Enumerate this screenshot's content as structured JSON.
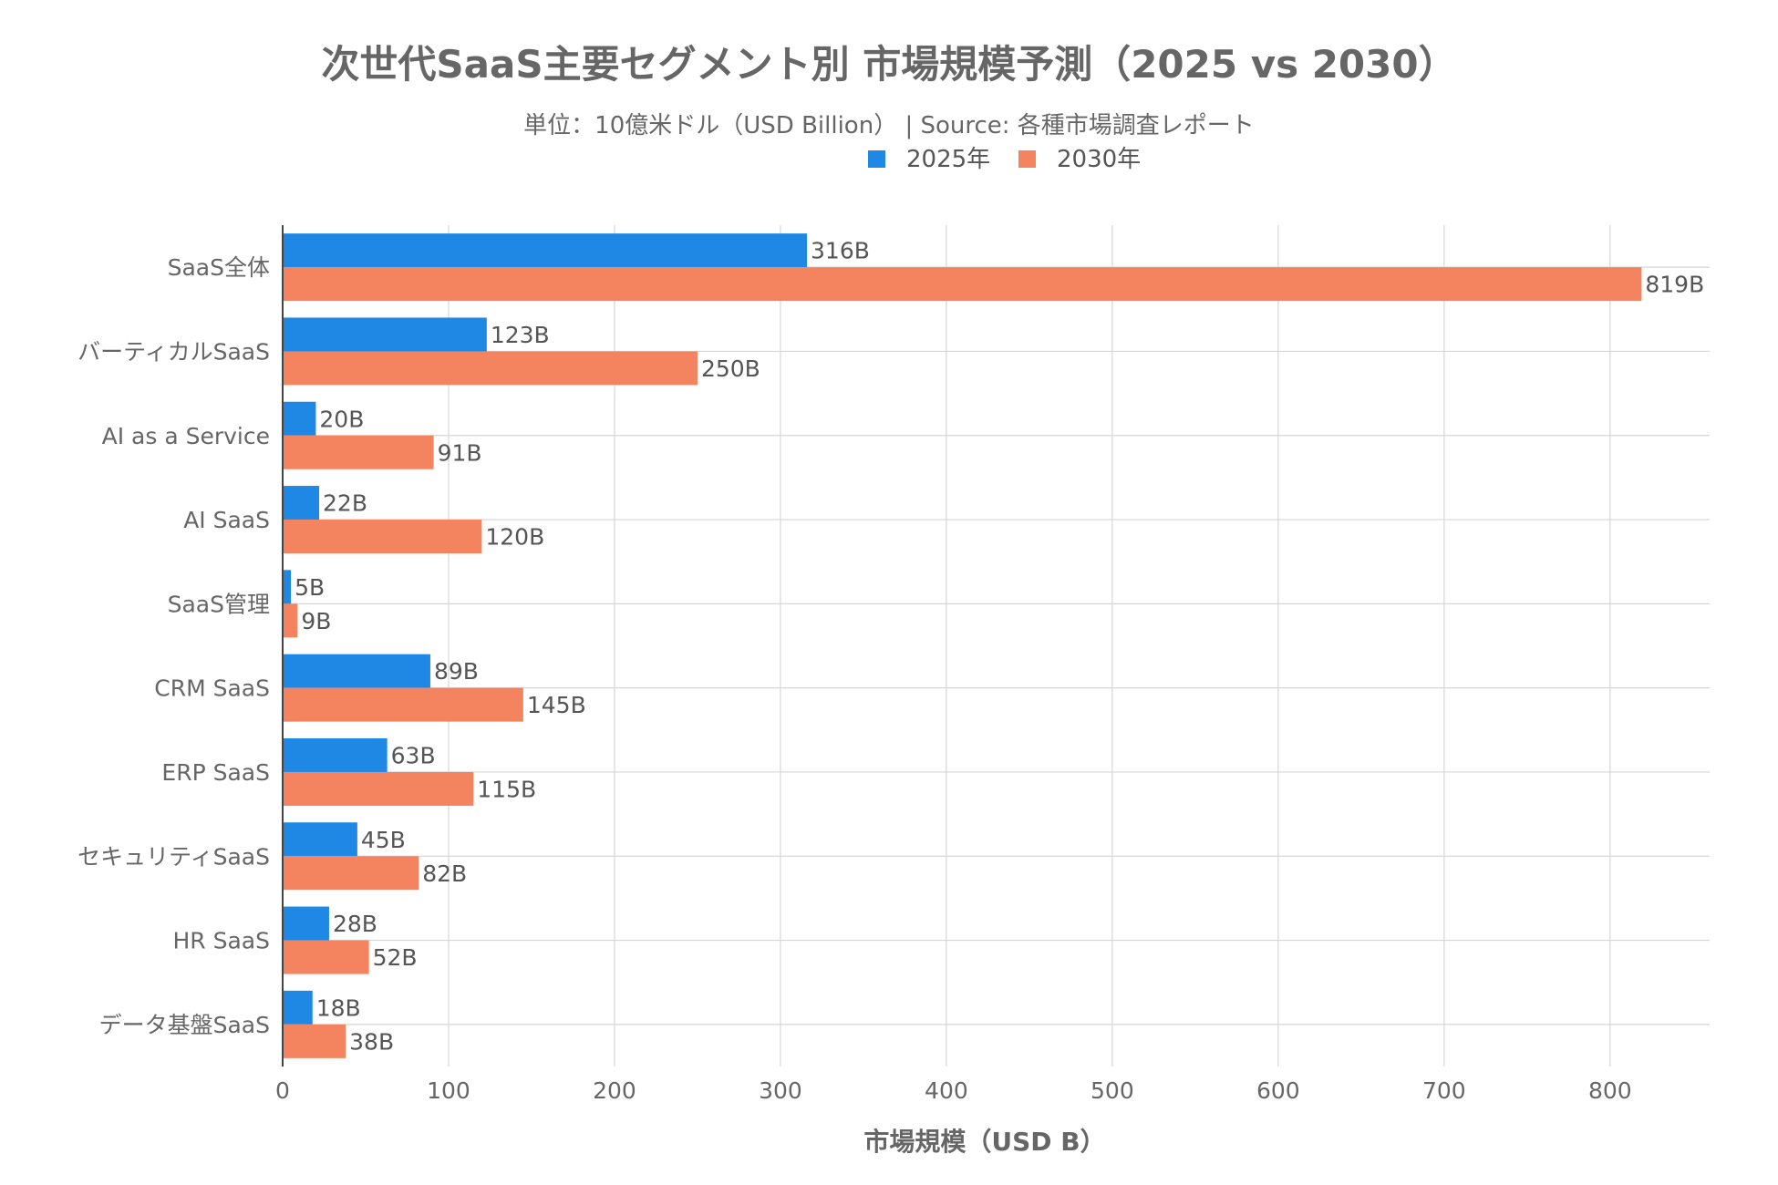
{
  "chart_data": {
    "type": "bar",
    "orientation": "horizontal",
    "title": "次世代SaaS主要セグメント別 市場規模予測（2025 vs 2030）",
    "subtitle": "単位：10億米ドル（USD Billion） | Source: 各種市場調査レポート",
    "xlabel": "市場規模（USD B）",
    "ylabel": "",
    "xlim": [
      0,
      860
    ],
    "xticks": [
      0,
      100,
      200,
      300,
      400,
      500,
      600,
      700,
      800
    ],
    "grid": true,
    "legend_position": "top-center",
    "value_suffix": "B",
    "categories": [
      "SaaS全体",
      "バーティカルSaaS",
      "AI as a Service",
      "AI SaaS",
      "SaaS管理",
      "CRM SaaS",
      "ERP SaaS",
      "セキュリティSaaS",
      "HR SaaS",
      "データ基盤SaaS"
    ],
    "series": [
      {
        "name": "2025年",
        "color": "#1f88e5",
        "values": [
          316,
          123,
          20,
          22,
          5,
          89,
          63,
          45,
          28,
          18
        ]
      },
      {
        "name": "2030年",
        "color": "#f4845f",
        "values": [
          819,
          250,
          91,
          120,
          9,
          145,
          115,
          82,
          52,
          38
        ]
      }
    ]
  }
}
